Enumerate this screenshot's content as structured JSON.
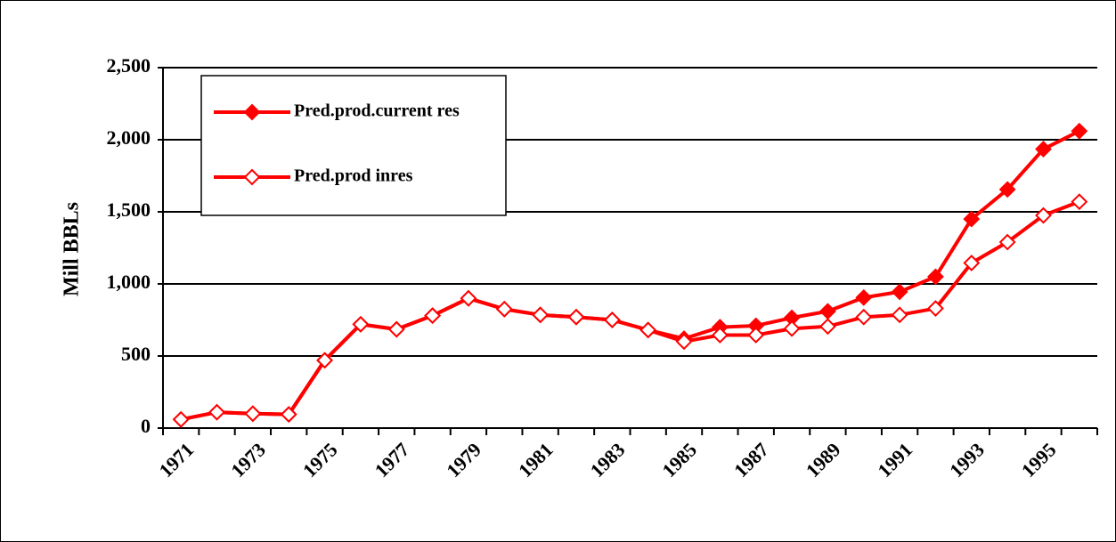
{
  "chart_data": {
    "type": "line",
    "y_label": "Mill BBLs",
    "categories": [
      "1971",
      null,
      "1973",
      null,
      "1975",
      null,
      "1977",
      null,
      "1979",
      null,
      "1981",
      null,
      "1983",
      null,
      "1985",
      null,
      "1987",
      null,
      "1989",
      null,
      "1991",
      null,
      "1993",
      null,
      "1995",
      null
    ],
    "series": [
      {
        "name": "Pred.prod.current res",
        "color": "#ff0000",
        "marker": "filled-diamond",
        "values": [
          60,
          110,
          100,
          95,
          470,
          720,
          685,
          780,
          900,
          825,
          785,
          770,
          750,
          680,
          620,
          700,
          710,
          765,
          810,
          905,
          945,
          1050,
          1450,
          1655,
          1935,
          2060
        ]
      },
      {
        "name": "Pred.prod inres",
        "color": "#ff0000",
        "marker": "hollow-diamond",
        "values": [
          60,
          110,
          100,
          95,
          470,
          720,
          685,
          780,
          900,
          825,
          785,
          770,
          750,
          680,
          600,
          645,
          645,
          690,
          705,
          770,
          785,
          830,
          1145,
          1290,
          1475,
          1570
        ]
      }
    ],
    "ylim": [
      0,
      2500
    ],
    "yticks": [
      0,
      {
        "value": 500,
        "label": "500"
      },
      {
        "value": 1000,
        "label": "1,000"
      },
      {
        "value": 1500,
        "label": "1,500"
      },
      {
        "value": 2000,
        "label": "2,000"
      },
      {
        "value": 2500,
        "label": "2,500"
      }
    ],
    "grid": true,
    "legend": "top-left"
  }
}
